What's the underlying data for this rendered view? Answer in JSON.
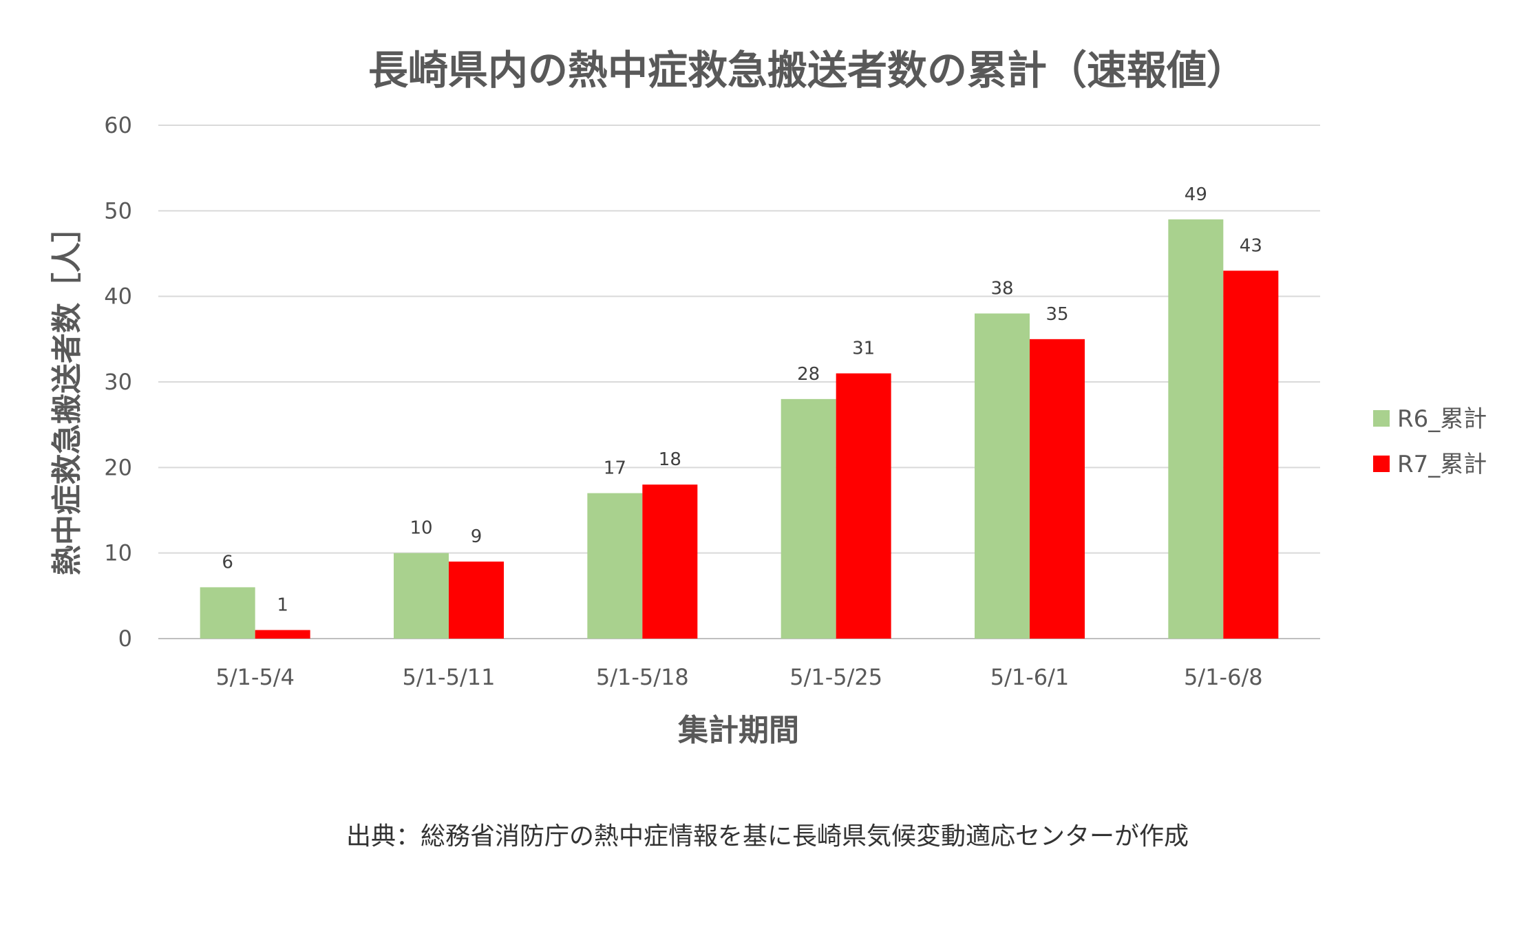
{
  "chart_data": {
    "type": "bar",
    "title": "長崎県内の熱中症救急搬送者数の累計（速報値）",
    "xlabel": "集計期間",
    "ylabel": "熱中症救急搬送者数［人］",
    "categories": [
      "5/1-5/4",
      "5/1-5/11",
      "5/1-5/18",
      "5/1-5/25",
      "5/1-6/1",
      "5/1-6/8"
    ],
    "series": [
      {
        "name": "R6_累計",
        "color": "#a9d18e",
        "values": [
          6,
          10,
          17,
          28,
          38,
          49
        ]
      },
      {
        "name": "R7_累計",
        "color": "#ff0000",
        "values": [
          1,
          9,
          18,
          31,
          35,
          43
        ]
      }
    ],
    "ylim": [
      0,
      60
    ],
    "yticks": [
      0,
      10,
      20,
      30,
      40,
      50,
      60
    ],
    "grid": true,
    "legend_position": "right"
  },
  "source_note": "出典：総務省消防庁の熱中症情報を基に長崎県気候変動適応センターが作成"
}
